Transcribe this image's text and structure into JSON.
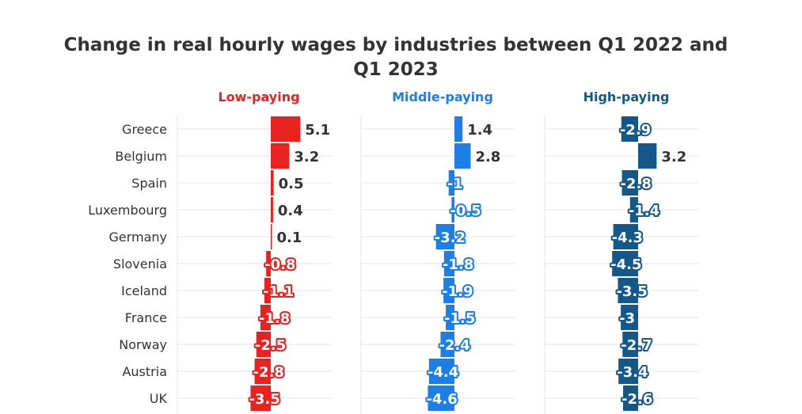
{
  "chart_data": {
    "type": "bar",
    "orientation": "horizontal",
    "title_line1": "Change in real hourly wages by industries between Q1 2022 and",
    "title_line2": "Q1 2023",
    "categories": [
      "Greece",
      "Belgium",
      "Spain",
      "Luxembourg",
      "Germany",
      "Slovenia",
      "Iceland",
      "France",
      "Norway",
      "Austria",
      "UK"
    ],
    "grid": true,
    "series": [
      {
        "name": "Low-paying",
        "color": "#e8221f",
        "values": [
          5.1,
          3.2,
          0.5,
          0.4,
          0.1,
          -0.8,
          -1.1,
          -1.8,
          -2.5,
          -2.8,
          -3.5
        ]
      },
      {
        "name": "Middle-paying",
        "color": "#1d7ee8",
        "values": [
          1.4,
          2.8,
          -1,
          -0.5,
          -3.2,
          -1.8,
          -1.9,
          -1.5,
          -2.4,
          -4.4,
          -4.6
        ]
      },
      {
        "name": "High-paying",
        "color": "#14588a",
        "values": [
          -2.9,
          3.2,
          -2.8,
          -1.4,
          -4.3,
          -4.5,
          -3.5,
          -3,
          -2.7,
          -3.4,
          -2.6
        ]
      }
    ]
  }
}
